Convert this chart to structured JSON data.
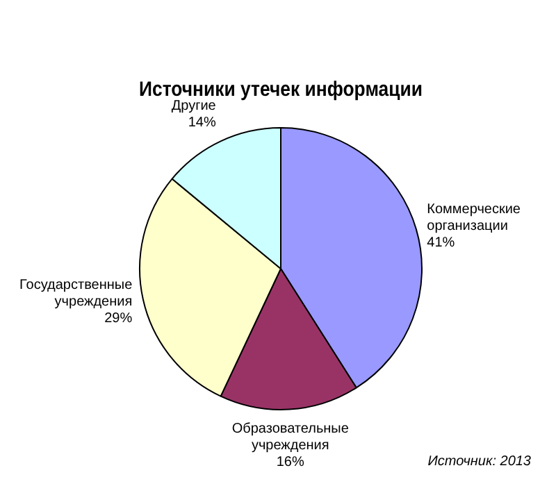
{
  "chart_data": {
    "type": "pie",
    "title": "Источники утечек информации",
    "categories": [
      "Коммерческие организации",
      "Образовательные учреждения",
      "Государственные учреждения",
      "Другие"
    ],
    "values": [
      41,
      16,
      29,
      14
    ],
    "value_labels": [
      "41%",
      "16%",
      "29%",
      "14%"
    ],
    "colors": [
      "#9999ff",
      "#993366",
      "#ffffcc",
      "#ccffff"
    ],
    "annotations": [
      "Источник: 2013"
    ],
    "legend": false
  }
}
